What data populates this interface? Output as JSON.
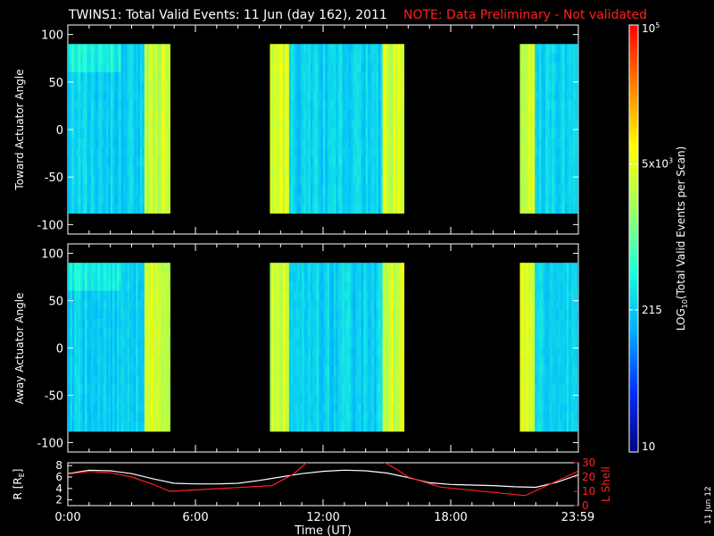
{
  "header": {
    "title": "TWINS1: Total Valid Events: 11 Jun (day 162), 2011",
    "note": "NOTE: Data Preliminary - Not validated"
  },
  "colors": {
    "note": "#ff2020",
    "ephem_r": "#ffffff",
    "ephem_lshell": "#ff2020",
    "background": "#000000"
  },
  "chart_data": [
    {
      "type": "heatmap",
      "ylabel": "Toward Actuator Angle",
      "ylim": [
        -110,
        110
      ],
      "yticks": [
        100,
        50,
        0,
        -50,
        -100
      ],
      "y_range_of_data": [
        -88,
        90
      ],
      "data_intervals_ut_hours": [
        [
          0.0,
          4.75
        ],
        [
          9.5,
          15.75
        ],
        [
          21.25,
          24.0
        ]
      ],
      "bright_intervals_ut_hours": [
        [
          3.6,
          4.75
        ],
        [
          9.5,
          10.4
        ],
        [
          14.8,
          15.75
        ],
        [
          21.25,
          22.0
        ]
      ]
    },
    {
      "type": "heatmap",
      "ylabel": "Away Actuator Angle",
      "ylim": [
        -110,
        110
      ],
      "yticks": [
        100,
        50,
        0,
        -50,
        -100
      ],
      "y_range_of_data": [
        -88,
        90
      ],
      "data_intervals_ut_hours": [
        [
          0.0,
          4.75
        ],
        [
          9.5,
          15.75
        ],
        [
          21.25,
          24.0
        ]
      ],
      "bright_intervals_ut_hours": [
        [
          3.6,
          4.75
        ],
        [
          9.5,
          10.4
        ],
        [
          14.8,
          15.75
        ],
        [
          21.25,
          22.0
        ]
      ]
    },
    {
      "type": "line",
      "xlabel": "Time (UT)",
      "xticks": [
        "0:00",
        "6:00",
        "12:00",
        "18:00",
        "23:59"
      ],
      "xtick_hours": [
        0,
        6,
        12,
        18,
        23.98
      ],
      "ylabel_left": "R [R",
      "ylabel_left_sub": "E",
      "ylabel_left_end": "]",
      "ylabel_right": "L Shell",
      "yleft_ticks": [
        "8",
        "6",
        "4",
        "2"
      ],
      "yleft_tick_values": [
        8,
        6,
        4,
        2
      ],
      "yleft_lim": [
        1,
        8.5
      ],
      "yright_ticks": [
        "30",
        "20",
        "10",
        "0"
      ],
      "yright_tick_values": [
        30,
        20,
        10,
        0
      ],
      "yright_lim": [
        0,
        30
      ],
      "series": [
        {
          "axis": "left",
          "x": [
            0,
            1,
            2,
            3,
            4,
            5,
            6,
            7,
            8,
            9,
            10,
            11,
            12,
            13,
            14,
            15,
            16,
            17,
            18,
            19,
            20,
            21,
            22,
            23,
            24
          ],
          "y": [
            6.6,
            7.2,
            7.1,
            6.6,
            5.7,
            4.9,
            4.8,
            4.8,
            4.9,
            5.4,
            6.0,
            6.6,
            7.0,
            7.2,
            7.1,
            6.7,
            5.9,
            5.0,
            4.7,
            4.6,
            4.5,
            4.3,
            4.2,
            5.1,
            6.4
          ]
        },
        {
          "axis": "right",
          "x": [
            0,
            1,
            2,
            3,
            4,
            4.8,
            9.6,
            10.6,
            11.3,
            14.8,
            15.5,
            16.0,
            17.5,
            21.5,
            23.98
          ],
          "y": [
            22,
            24,
            23,
            20,
            15,
            10,
            14,
            22,
            31,
            31,
            25,
            20,
            13,
            7,
            24
          ]
        }
      ]
    },
    {
      "type": "heatmap",
      "colorbar_label": "LOG",
      "colorbar_label_sub": "10",
      "colorbar_label_rest": "(Total Valid Events per Scan)",
      "ticks": [
        {
          "base": "10",
          "exp": "5"
        },
        {
          "base": "5x10",
          "exp": "3"
        },
        {
          "base": "215",
          "exp": ""
        },
        {
          "base": "10",
          "exp": ""
        }
      ],
      "tick_log_values": [
        5,
        3.699,
        2.332,
        1
      ],
      "range_log": [
        1,
        5
      ],
      "stops": [
        "#000080",
        "#0030ff",
        "#00b0ff",
        "#20ffd8",
        "#a0ff60",
        "#ffff00",
        "#ff8000",
        "#ff0000"
      ]
    }
  ],
  "footer": {
    "date_stamp": "11 Jun 12"
  }
}
